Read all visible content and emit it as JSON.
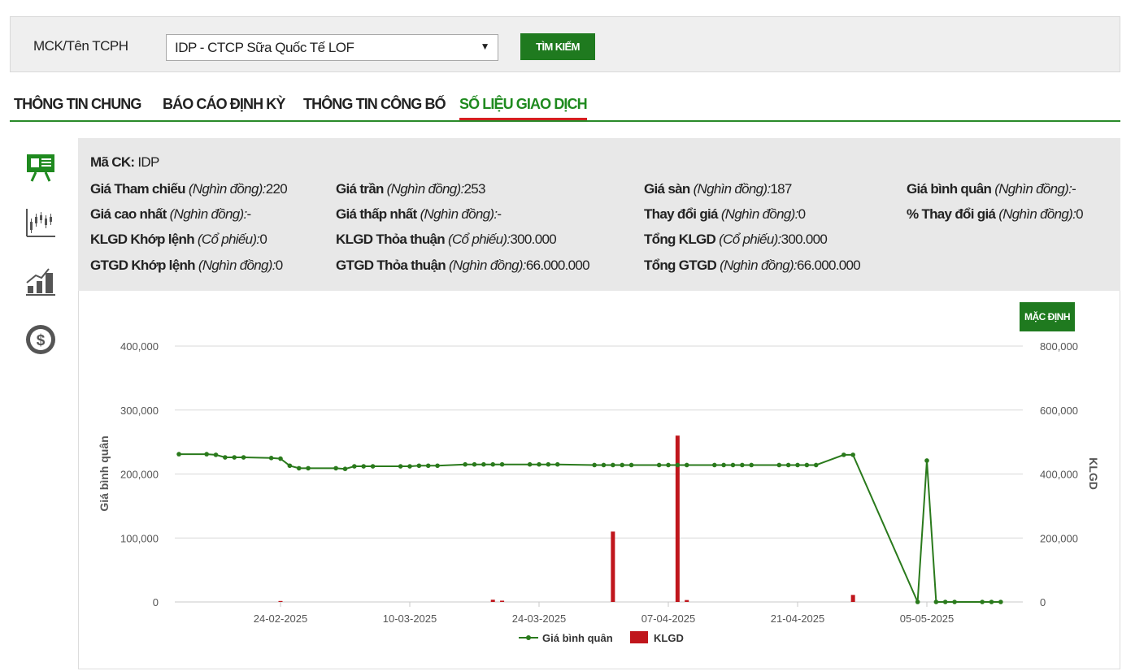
{
  "search": {
    "label": "MCK/Tên TCPH",
    "selected": "IDP - CTCP Sữa Quốc Tế LOF",
    "button": "TÌM KIẾM"
  },
  "tabs": [
    {
      "label": "THÔNG TIN CHUNG",
      "active": false
    },
    {
      "label": "BÁO CÁO ĐỊNH KỲ",
      "active": false
    },
    {
      "label": "THÔNG TIN CÔNG BỐ",
      "active": false
    },
    {
      "label": "SỐ LIỆU GIAO DỊCH",
      "active": true
    }
  ],
  "sidebar_icons": [
    "presentation-icon",
    "candlestick-chart-icon",
    "bar-growth-chart-icon",
    "dollar-coin-icon"
  ],
  "info": {
    "ticker_label": "Mã CK:",
    "ticker": "IDP",
    "rows": [
      [
        {
          "label": "Giá Tham chiếu",
          "unit": "(Nghìn đồng):",
          "value": "220"
        },
        {
          "label": "Giá trần",
          "unit": "(Nghìn đồng):",
          "value": "253"
        },
        {
          "label": "Giá sàn",
          "unit": "(Nghìn đồng):",
          "value": "187"
        },
        {
          "label": "Giá bình quân",
          "unit": "(Nghìn đồng):",
          "value": "-"
        }
      ],
      [
        {
          "label": "Giá cao nhất",
          "unit": "(Nghìn đồng):",
          "value": "-"
        },
        {
          "label": "Giá thấp nhất",
          "unit": "(Nghìn đồng):",
          "value": "-"
        },
        {
          "label": "Thay đổi giá",
          "unit": "(Nghìn đồng):",
          "value": "0"
        },
        {
          "label": "% Thay đổi giá",
          "unit": "(Nghìn đồng):",
          "value": "0"
        }
      ],
      [
        {
          "label": "KLGD Khớp lệnh",
          "unit": "(Cổ phiếu):",
          "value": "0"
        },
        {
          "label": "KLGD Thỏa thuận",
          "unit": "(Cổ phiếu):",
          "value": "300.000"
        },
        {
          "label": "Tổng KLGD",
          "unit": "(Cổ phiếu):",
          "value": "300.000"
        }
      ],
      [
        {
          "label": "GTGD Khớp lệnh",
          "unit": "(Nghìn đồng):",
          "value": "0"
        },
        {
          "label": "GTGD Thỏa thuận",
          "unit": "(Nghìn đồng):",
          "value": "66.000.000"
        },
        {
          "label": "Tổng GTGD",
          "unit": "(Nghìn đồng):",
          "value": "66.000.000"
        }
      ]
    ]
  },
  "chart_controls": {
    "reset_button": "MẶC ĐỊNH"
  },
  "colors": {
    "accent": "#1f7a1f",
    "line": "#2a7a1c",
    "bar": "#c0161c",
    "tab_underline": "#d42020"
  },
  "chart_data": {
    "type": "line",
    "ylabel": "Giá bình quân",
    "y2label": "KLGD",
    "ylim": [
      0,
      400000
    ],
    "y2lim": [
      0,
      800000
    ],
    "yticks": [
      "0",
      "100,000",
      "200,000",
      "300,000",
      "400,000"
    ],
    "y2ticks": [
      "0",
      "200,000",
      "400,000",
      "600,000",
      "800,000"
    ],
    "xticks": [
      "24-02-2025",
      "10-03-2025",
      "24-03-2025",
      "07-04-2025",
      "21-04-2025",
      "05-05-2025"
    ],
    "grid": true,
    "legend_position": "bottom",
    "series": [
      {
        "name": "Giá bình quân",
        "kind": "line",
        "x": [
          "2025-02-13",
          "2025-02-16",
          "2025-02-17",
          "2025-02-18",
          "2025-02-19",
          "2025-02-20",
          "2025-02-23",
          "2025-02-24",
          "2025-02-25",
          "2025-02-26",
          "2025-02-27",
          "2025-03-02",
          "2025-03-03",
          "2025-03-04",
          "2025-03-05",
          "2025-03-06",
          "2025-03-09",
          "2025-03-10",
          "2025-03-11",
          "2025-03-12",
          "2025-03-13",
          "2025-03-16",
          "2025-03-17",
          "2025-03-18",
          "2025-03-19",
          "2025-03-20",
          "2025-03-23",
          "2025-03-24",
          "2025-03-25",
          "2025-03-26",
          "2025-03-30",
          "2025-03-31",
          "2025-04-01",
          "2025-04-02",
          "2025-04-03",
          "2025-04-06",
          "2025-04-07",
          "2025-04-08",
          "2025-04-09",
          "2025-04-12",
          "2025-04-13",
          "2025-04-14",
          "2025-04-15",
          "2025-04-16",
          "2025-04-19",
          "2025-04-20",
          "2025-04-21",
          "2025-04-22",
          "2025-04-23",
          "2025-04-26",
          "2025-04-27",
          "2025-05-04",
          "2025-05-05",
          "2025-05-06",
          "2025-05-07",
          "2025-05-08",
          "2025-05-11",
          "2025-05-12",
          "2025-05-13"
        ],
        "values": [
          231000,
          231000,
          230000,
          226000,
          226000,
          226000,
          225000,
          224000,
          213000,
          209000,
          209000,
          209000,
          208000,
          212000,
          212000,
          212000,
          212000,
          212000,
          213000,
          213000,
          213000,
          215000,
          215000,
          215000,
          215000,
          215000,
          215000,
          215000,
          215000,
          215000,
          214000,
          214000,
          214000,
          214000,
          214000,
          214000,
          214000,
          214000,
          214000,
          214000,
          214000,
          214000,
          214000,
          214000,
          214000,
          214000,
          214000,
          214000,
          214000,
          230000,
          230000,
          0,
          221000,
          0,
          0,
          0,
          0,
          0,
          0
        ]
      },
      {
        "name": "KLGD",
        "kind": "bar",
        "axis": "right",
        "x": [
          "2025-02-24",
          "2025-03-19",
          "2025-03-20",
          "2025-04-01",
          "2025-04-08",
          "2025-04-09",
          "2025-04-27"
        ],
        "values": [
          3000,
          7000,
          4000,
          220000,
          520000,
          6000,
          22000
        ]
      }
    ]
  }
}
